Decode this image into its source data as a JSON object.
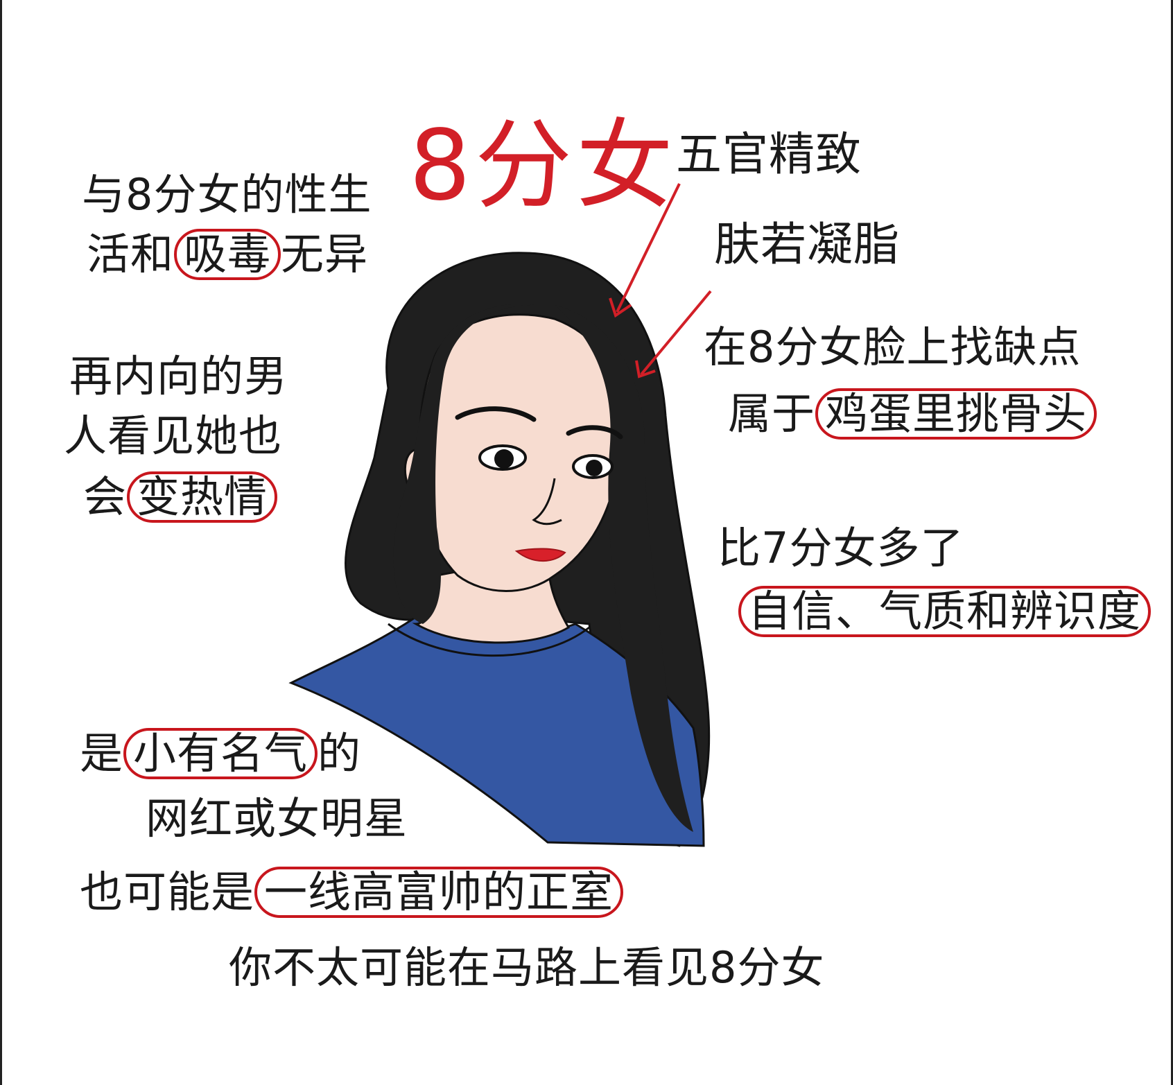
{
  "title": "8分女",
  "notes_left": {
    "n1_line1": "与8分女的性生",
    "n1_line2_pre": "活和",
    "n1_line2_circled": "吸毒",
    "n1_line2_post": "无异",
    "n2_line1": "再内向的男",
    "n2_line2": "人看见她也",
    "n2_line3_pre": "会",
    "n2_line3_circled": "变热情"
  },
  "notes_right": {
    "r1": "五官精致",
    "r2": "肤若凝脂",
    "r3_line1": "在8分女脸上找缺点",
    "r3_line2_pre": "属于",
    "r3_line2_circled": "鸡蛋里挑骨头",
    "r4_line1": "比7分女多了",
    "r4_line2_circled": "自信、气质和辨识度"
  },
  "notes_bottom": {
    "b1_pre": "是",
    "b1_circled": "小有名气",
    "b1_post": "的",
    "b2": "网红或女明星",
    "b3_pre": "也可能是",
    "b3_circled": "一线高富帅的正室",
    "b4": "你不太可能在马路上看见8分女"
  },
  "colors": {
    "accent_red": "#d21f27",
    "hair": "#1f1f1f",
    "skin": "#f7dcd0",
    "shirt": "#3457a3",
    "earring": "#f0a37a",
    "lips": "#d8202a"
  }
}
